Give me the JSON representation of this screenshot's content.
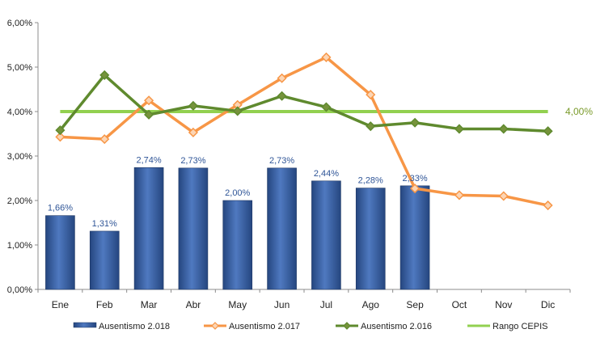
{
  "chart_data": {
    "type": "bar",
    "categories": [
      "Ene",
      "Feb",
      "Mar",
      "Abr",
      "May",
      "Jun",
      "Jul",
      "Ago",
      "Sep",
      "Oct",
      "Nov",
      "Dic"
    ],
    "yticks": [
      "0,00%",
      "1,00%",
      "2,00%",
      "3,00%",
      "4,00%",
      "5,00%",
      "6,00%"
    ],
    "ylim": [
      0,
      6
    ],
    "bars": {
      "name": "Ausentismo 2.018",
      "values": [
        1.66,
        1.31,
        2.74,
        2.73,
        2.0,
        2.73,
        2.44,
        2.28,
        2.33
      ],
      "labels": [
        "1,66%",
        "1,31%",
        "2,74%",
        "2,73%",
        "2,00%",
        "2,73%",
        "2,44%",
        "2,28%",
        "2,33%"
      ],
      "color": "#2f5597"
    },
    "series": [
      {
        "name": "Ausentismo 2.017",
        "type": "line",
        "marker": "diamond",
        "color": "#f79646",
        "values": [
          3.43,
          3.38,
          4.25,
          3.53,
          4.15,
          4.75,
          5.22,
          4.38,
          2.27,
          2.12,
          2.1,
          1.89
        ]
      },
      {
        "name": "Ausentismo 2.016",
        "type": "line",
        "marker": "diamond",
        "color": "#5f8a2e",
        "values": [
          3.58,
          4.82,
          3.93,
          4.13,
          4.01,
          4.35,
          4.1,
          3.67,
          3.75,
          3.61,
          3.61,
          3.56
        ]
      },
      {
        "name": "Rango CEPIS",
        "type": "line",
        "marker": "none",
        "color": "#92d050",
        "values": [
          4.0,
          4.0,
          4.0,
          4.0,
          4.0,
          4.0,
          4.0,
          4.0,
          4.0,
          4.0,
          4.0,
          4.0
        ],
        "end_label": "4,00%"
      }
    ],
    "legend_position": "bottom",
    "grid": false
  }
}
